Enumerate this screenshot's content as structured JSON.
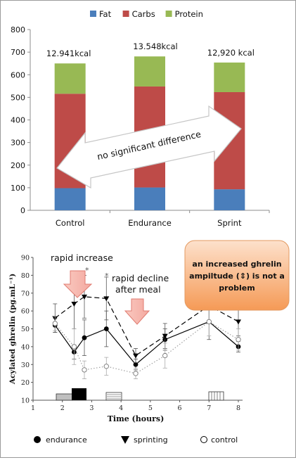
{
  "chart_data": [
    {
      "type": "bar",
      "stacked": true,
      "categories": [
        "Control",
        "Endurance",
        "Sprint"
      ],
      "series": [
        {
          "name": "Fat",
          "values": [
            98,
            101,
            93
          ],
          "color": "#4a7ebb"
        },
        {
          "name": "Carbs",
          "values": [
            418,
            447,
            430
          ],
          "color": "#be4b48"
        },
        {
          "name": "Protein",
          "values": [
            134,
            133,
            131
          ],
          "color": "#98b954"
        }
      ],
      "bar_labels": [
        "12.941kcal",
        "13.548kcal",
        "12,920 kcal"
      ],
      "ylim": [
        0,
        800
      ],
      "yticks": [
        "0",
        "100",
        "200",
        "300",
        "400",
        "500",
        "600",
        "700",
        "800"
      ],
      "legend_position": "top",
      "annotation": "no significant difference",
      "grid": false
    },
    {
      "type": "line",
      "xlabel": "Time (hours)",
      "ylabel": "Acylated ghrelin (pg.mL⁻¹)",
      "xlim": [
        1,
        8
      ],
      "ylim": [
        10,
        90
      ],
      "xticks": [
        "1",
        "2",
        "3",
        "4",
        "5",
        "6",
        "7",
        "8"
      ],
      "yticks": [
        "10",
        "20",
        "30",
        "40",
        "50",
        "60",
        "70",
        "80",
        "90"
      ],
      "series": [
        {
          "name": "endurance",
          "marker": "filled-circle",
          "line": "solid",
          "x": [
            1.75,
            2.4,
            2.75,
            3.5,
            4.5,
            5.5,
            7.0,
            8.0
          ],
          "y": [
            52,
            37,
            45,
            50,
            30,
            44,
            54,
            40
          ]
        },
        {
          "name": "sprinting",
          "marker": "filled-triangle-down",
          "line": "dashed",
          "x": [
            1.75,
            2.4,
            2.75,
            3.5,
            4.5,
            5.5,
            7.0,
            8.0
          ],
          "y": [
            56,
            64,
            68,
            67,
            35,
            46,
            63,
            54
          ]
        },
        {
          "name": "control",
          "marker": "open-circle",
          "line": "dotted",
          "x": [
            1.75,
            2.4,
            2.75,
            3.5,
            4.5,
            5.5,
            7.0,
            8.0
          ],
          "y": [
            53,
            40,
            27,
            29,
            25,
            35,
            54,
            44
          ]
        }
      ],
      "asterisks": [
        "*",
        "*"
      ],
      "annotations": {
        "rapid_increase": "rapid increase",
        "rapid_decline_line1": "rapid decline",
        "rapid_decline_line2": "after meal",
        "callout_line1": "an increased ghrelin",
        "callout_line2": "ampiltude (⇕) is not a",
        "callout_line3": "problem"
      }
    }
  ]
}
